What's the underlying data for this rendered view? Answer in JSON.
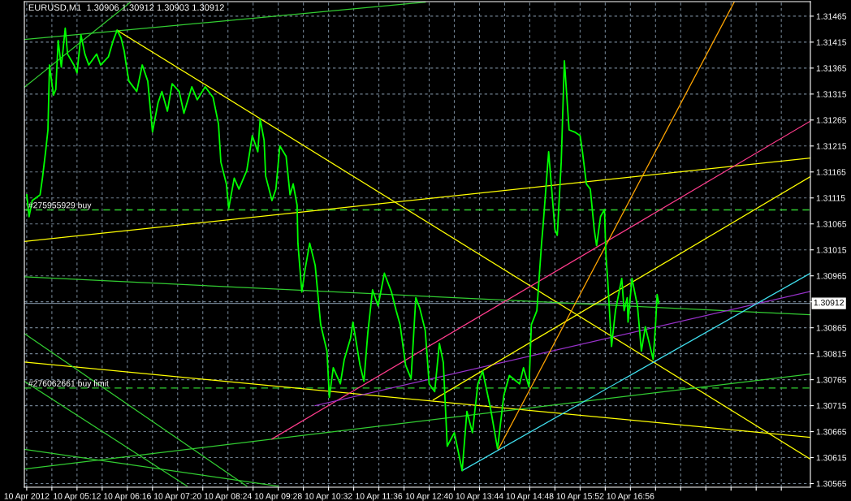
{
  "chart_data": {
    "type": "line",
    "title": "EURUSD,M1  1.30906 1.30912 1.30903 1.30912",
    "xlim": [
      "2012-04-10T04:05",
      "2012-04-10T20:45"
    ],
    "ylim": [
      1.30558,
      1.31493
    ],
    "xticks": [
      {
        "value": "2012-04-10T04:08",
        "label": "10 Apr 2012"
      },
      {
        "value": "2012-04-10T04:40",
        "label": null
      },
      {
        "value": "2012-04-10T05:12",
        "label": "10 Apr 05:12"
      },
      {
        "value": "2012-04-10T05:44",
        "label": null
      },
      {
        "value": "2012-04-10T06:16",
        "label": "10 Apr 06:16"
      },
      {
        "value": "2012-04-10T06:48",
        "label": null
      },
      {
        "value": "2012-04-10T07:20",
        "label": "10 Apr 07:20"
      },
      {
        "value": "2012-04-10T07:52",
        "label": null
      },
      {
        "value": "2012-04-10T08:24",
        "label": "10 Apr 08:24"
      },
      {
        "value": "2012-04-10T08:56",
        "label": null
      },
      {
        "value": "2012-04-10T09:28",
        "label": "10 Apr 09:28"
      },
      {
        "value": "2012-04-10T10:00",
        "label": null
      },
      {
        "value": "2012-04-10T10:32",
        "label": "10 Apr 10:32"
      },
      {
        "value": "2012-04-10T11:04",
        "label": null
      },
      {
        "value": "2012-04-10T11:36",
        "label": "10 Apr 11:36"
      },
      {
        "value": "2012-04-10T12:08",
        "label": null
      },
      {
        "value": "2012-04-10T12:40",
        "label": "10 Apr 12:40"
      },
      {
        "value": "2012-04-10T13:12",
        "label": null
      },
      {
        "value": "2012-04-10T13:44",
        "label": "10 Apr 13:44"
      },
      {
        "value": "2012-04-10T14:16",
        "label": null
      },
      {
        "value": "2012-04-10T14:48",
        "label": "10 Apr 14:48"
      },
      {
        "value": "2012-04-10T15:20",
        "label": null
      },
      {
        "value": "2012-04-10T15:52",
        "label": "10 Apr 15:52"
      },
      {
        "value": "2012-04-10T16:24",
        "label": null
      },
      {
        "value": "2012-04-10T16:56",
        "label": "10 Apr 16:56"
      },
      {
        "value": "2012-04-10T17:28",
        "label": null
      },
      {
        "value": "2012-04-10T18:00",
        "label": null
      },
      {
        "value": "2012-04-10T18:32",
        "label": null
      },
      {
        "value": "2012-04-10T19:04",
        "label": null
      },
      {
        "value": "2012-04-10T19:36",
        "label": null
      },
      {
        "value": "2012-04-10T20:08",
        "label": null
      }
    ],
    "yticks": [
      1.30565,
      1.30615,
      1.30665,
      1.30715,
      1.30765,
      1.30815,
      1.30865,
      {
        "value": 1.30915,
        "label": null
      },
      1.30965,
      1.31015,
      1.31065,
      1.31115,
      1.31165,
      1.31215,
      1.31265,
      1.31315,
      1.31365,
      1.31415,
      1.31465
    ],
    "grid": true,
    "marker": "none",
    "series": [
      {
        "color": "#00ff00",
        "x": [
          "2012-04-10T04:08",
          "2012-04-10T04:11",
          "2012-04-10T04:15",
          "2012-04-10T04:25",
          "2012-04-10T04:28",
          "2012-04-10T04:32",
          "2012-04-10T04:35",
          "2012-04-10T04:37",
          "2012-04-10T04:42",
          "2012-04-10T04:45",
          "2012-04-10T04:48",
          "2012-04-10T04:52",
          "2012-04-10T04:57",
          "2012-04-10T05:00",
          "2012-04-10T05:08",
          "2012-04-10T05:12",
          "2012-04-10T05:17",
          "2012-04-10T05:22",
          "2012-04-10T05:27",
          "2012-04-10T05:37",
          "2012-04-10T05:42",
          "2012-04-10T05:52",
          "2012-04-10T05:58",
          "2012-04-10T06:03",
          "2012-04-10T06:08",
          "2012-04-10T06:12",
          "2012-04-10T06:15",
          "2012-04-10T06:18",
          "2012-04-10T06:28",
          "2012-04-10T06:35",
          "2012-04-10T06:42",
          "2012-04-10T06:48",
          "2012-04-10T06:55",
          "2012-04-10T07:00",
          "2012-04-10T07:07",
          "2012-04-10T07:13",
          "2012-04-10T07:22",
          "2012-04-10T07:28",
          "2012-04-10T07:38",
          "2012-04-10T07:45",
          "2012-04-10T07:55",
          "2012-04-10T08:05",
          "2012-04-10T08:12",
          "2012-04-10T08:15",
          "2012-04-10T08:22",
          "2012-04-10T08:25",
          "2012-04-10T08:32",
          "2012-04-10T08:38",
          "2012-04-10T08:48",
          "2012-04-10T08:55",
          "2012-04-10T09:02",
          "2012-04-10T09:05",
          "2012-04-10T09:10",
          "2012-04-10T09:12",
          "2012-04-10T09:20",
          "2012-04-10T09:25",
          "2012-04-10T09:30",
          "2012-04-10T09:38",
          "2012-04-10T09:43",
          "2012-04-10T09:47",
          "2012-04-10T09:52",
          "2012-04-10T09:53",
          "2012-04-10T09:58",
          "2012-04-10T10:02",
          "2012-04-10T10:08",
          "2012-04-10T10:15",
          "2012-04-10T10:22",
          "2012-04-10T10:30",
          "2012-04-10T10:33",
          "2012-04-10T10:38",
          "2012-04-10T10:47",
          "2012-04-10T10:52",
          "2012-04-10T11:00",
          "2012-04-10T11:03",
          "2012-04-10T11:12",
          "2012-04-10T11:17",
          "2012-04-10T11:22",
          "2012-04-10T11:28",
          "2012-04-10T11:35",
          "2012-04-10T11:43",
          "2012-04-10T11:52",
          "2012-04-10T11:58",
          "2012-04-10T12:03",
          "2012-04-10T12:10",
          "2012-04-10T12:17",
          "2012-04-10T12:23",
          "2012-04-10T12:28",
          "2012-04-10T12:35",
          "2012-04-10T12:40",
          "2012-04-10T12:47",
          "2012-04-10T12:53",
          "2012-04-10T12:58",
          "2012-04-10T13:03",
          "2012-04-10T13:12",
          "2012-04-10T13:22",
          "2012-04-10T13:28",
          "2012-04-10T13:35",
          "2012-04-10T13:42",
          "2012-04-10T13:48",
          "2012-04-10T13:58",
          "2012-04-10T14:07",
          "2012-04-10T14:15",
          "2012-04-10T14:22",
          "2012-04-10T14:35",
          "2012-04-10T14:40",
          "2012-04-10T14:47",
          "2012-04-10T14:50",
          "2012-04-10T14:57",
          "2012-04-10T15:03",
          "2012-04-10T15:05",
          "2012-04-10T15:12",
          "2012-04-10T15:20",
          "2012-04-10T15:23",
          "2012-04-10T15:28",
          "2012-04-10T15:32",
          "2012-04-10T15:35",
          "2012-04-10T15:38",
          "2012-04-10T15:45",
          "2012-04-10T15:52",
          "2012-04-10T15:55",
          "2012-04-10T16:00",
          "2012-04-10T16:05",
          "2012-04-10T16:10",
          "2012-04-10T16:13",
          "2012-04-10T16:18",
          "2012-04-10T16:23",
          "2012-04-10T16:25",
          "2012-04-10T16:27",
          "2012-04-10T16:32",
          "2012-04-10T16:37",
          "2012-04-10T16:45",
          "2012-04-10T16:48",
          "2012-04-10T16:52",
          "2012-04-10T16:53",
          "2012-04-10T16:58",
          "2012-04-10T17:05",
          "2012-04-10T17:10",
          "2012-04-10T17:15",
          "2012-04-10T17:25",
          "2012-04-10T17:28",
          "2012-04-10T17:30",
          "2012-04-10T17:32"
        ],
        "values": [
          1.31121,
          1.31079,
          1.3111,
          1.31121,
          1.31153,
          1.31204,
          1.31246,
          1.31371,
          1.31313,
          1.31324,
          1.31418,
          1.31367,
          1.31442,
          1.31392,
          1.31371,
          1.31356,
          1.31429,
          1.31392,
          1.31371,
          1.31392,
          1.31371,
          1.31387,
          1.31418,
          1.31438,
          1.31423,
          1.31398,
          1.31367,
          1.3134,
          1.3132,
          1.31371,
          1.3134,
          1.31242,
          1.31298,
          1.3132,
          1.31282,
          1.31335,
          1.3132,
          1.31278,
          1.31329,
          1.31304,
          1.31329,
          1.31309,
          1.31257,
          1.31184,
          1.31142,
          1.31095,
          1.31153,
          1.31132,
          1.31168,
          1.31235,
          1.31204,
          1.31267,
          1.31226,
          1.31157,
          1.3111,
          1.31132,
          1.31215,
          1.31195,
          1.31121,
          1.31142,
          1.31101,
          1.31028,
          1.30934,
          1.30976,
          1.31028,
          1.30985,
          1.30871,
          1.3082,
          1.30731,
          1.30788,
          1.30757,
          1.30804,
          1.30845,
          1.30876,
          1.30793,
          1.30762,
          1.30856,
          1.30938,
          1.30907,
          1.3097,
          1.30934,
          1.30898,
          1.30871,
          1.30793,
          1.30767,
          1.30923,
          1.30903,
          1.3086,
          1.30757,
          1.30742,
          1.30835,
          1.30798,
          1.30637,
          1.30663,
          1.3059,
          1.30704,
          1.30663,
          1.30757,
          1.30782,
          1.3071,
          1.30632,
          1.30735,
          1.30773,
          1.30757,
          1.30788,
          1.30751,
          1.30871,
          1.30898,
          1.31028,
          1.31063,
          1.31204,
          1.31054,
          1.31043,
          1.31184,
          1.31379,
          1.31313,
          1.31246,
          1.31242,
          1.31235,
          1.31204,
          1.31142,
          1.31132,
          1.31054,
          1.31023,
          1.31079,
          1.31093,
          1.31001,
          1.3096,
          1.30829,
          1.30898,
          1.3096,
          1.30898,
          1.30923,
          1.30876,
          1.3096,
          1.30907,
          1.3082,
          1.30867,
          1.30804,
          1.30871,
          1.30929,
          1.30912
        ]
      },
      {
        "color": "#32cd32",
        "x": [
          "2012-04-10T04:05",
          "2012-04-10T12:35"
        ],
        "values": [
          1.3142,
          1.31492
        ]
      },
      {
        "color": "#32cd32",
        "x": [
          "2012-04-10T04:05",
          "2012-04-10T06:20"
        ],
        "values": [
          1.31328,
          1.31492
        ]
      },
      {
        "color": "#ffff00",
        "x": [
          "2012-04-10T06:03",
          "2012-04-10T20:45"
        ],
        "values": [
          1.31438,
          1.30612
        ]
      },
      {
        "color": "#ffff00",
        "x": [
          "2012-04-10T04:05",
          "2012-04-10T20:45"
        ],
        "values": [
          1.31031,
          1.31192
        ]
      },
      {
        "color": "#32cd32",
        "x": [
          "2012-04-10T04:05",
          "2012-04-10T20:45"
        ],
        "values": [
          1.30963,
          1.3089
        ]
      },
      {
        "color": "#ffff00",
        "x": [
          "2012-04-10T04:05",
          "2012-04-10T20:45"
        ],
        "values": [
          1.30799,
          1.30654
        ]
      },
      {
        "color": "#32cd32",
        "x": [
          "2012-04-10T04:05",
          "2012-04-10T08:48"
        ],
        "values": [
          1.30854,
          1.3056
        ]
      },
      {
        "color": "#32cd32",
        "x": [
          "2012-04-10T04:05",
          "2012-04-10T07:32"
        ],
        "values": [
          1.30762,
          1.3056
        ]
      },
      {
        "color": "#32cd32",
        "x": [
          "2012-04-10T04:05",
          "2012-04-10T20:45"
        ],
        "values": [
          1.30593,
          1.30776
        ]
      },
      {
        "color": "#32cd32",
        "x": [
          "2012-04-10T04:05",
          "2012-04-10T09:28"
        ],
        "values": [
          1.30631,
          1.3056
        ]
      },
      {
        "color": "#ff3c8c",
        "x": [
          "2012-04-10T09:20",
          "2012-04-10T20:45"
        ],
        "values": [
          1.30651,
          1.31263
        ]
      },
      {
        "color": "#9932cc",
        "x": [
          "2012-04-10T10:15",
          "2012-04-10T20:45"
        ],
        "values": [
          1.30715,
          1.30935
        ]
      },
      {
        "color": "#ffff00",
        "x": [
          "2012-04-10T12:45",
          "2012-04-10T20:45"
        ],
        "values": [
          1.30726,
          1.31156
        ]
      },
      {
        "color": "#ffa500",
        "x": [
          "2012-04-10T14:08",
          "2012-04-10T19:08"
        ],
        "values": [
          1.30631,
          1.31492
        ]
      },
      {
        "color": "#40e0f0",
        "x": [
          "2012-04-10T13:22",
          "2012-04-10T20:45"
        ],
        "values": [
          1.3059,
          1.3097
        ]
      }
    ],
    "ref_lines": [
      {
        "axis": "y",
        "value": 1.31092,
        "label": "#275955929 buy",
        "color": "#32cd32",
        "line_style": "dashed"
      },
      {
        "axis": "y",
        "value": 1.30749,
        "label": "#276062661 buy limit",
        "color": "#32cd32",
        "line_style": "dashed"
      },
      {
        "axis": "y",
        "value": 1.30912,
        "label": "1.30912",
        "color": "#708090",
        "line_style": "solid"
      }
    ]
  }
}
